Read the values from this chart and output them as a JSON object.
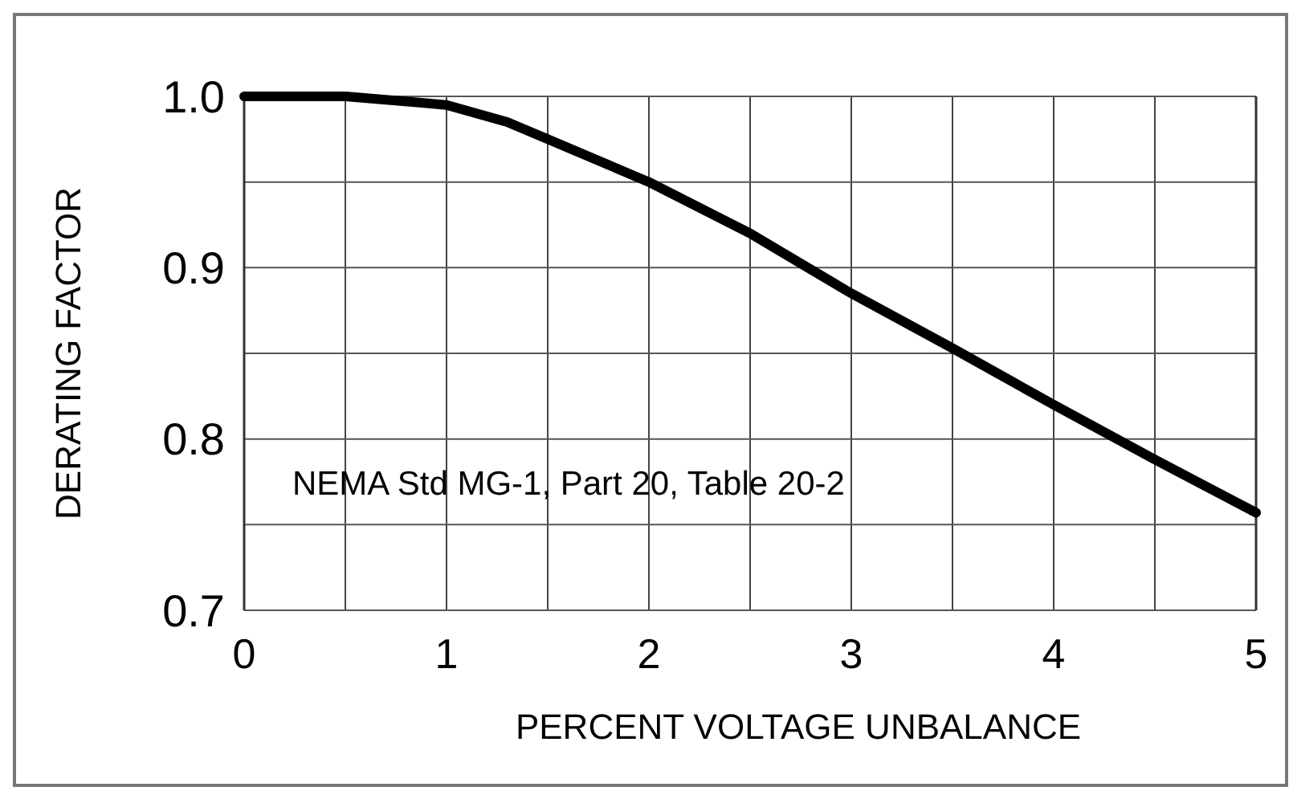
{
  "chart_data": {
    "type": "line",
    "xlabel": "PERCENT VOLTAGE UNBALANCE",
    "ylabel": "DERATING FACTOR",
    "x": [
      0,
      0.5,
      1,
      1.3,
      1.5,
      2,
      2.5,
      3,
      3.5,
      4,
      4.5,
      5
    ],
    "series": [
      {
        "color": "#000000",
        "values": [
          1.0,
          1.0,
          0.995,
          0.985,
          0.975,
          0.95,
          0.92,
          0.885,
          0.853,
          0.82,
          0.788,
          0.757
        ]
      }
    ],
    "xlim": [
      0,
      5
    ],
    "ylim": [
      0.7,
      1.0
    ],
    "xticks": [
      0,
      {
        "value": 0.5,
        "label": null
      },
      1,
      {
        "value": 1.5,
        "label": null
      },
      2,
      {
        "value": 2.5,
        "label": null
      },
      3,
      {
        "value": 3.5,
        "label": null
      },
      4,
      {
        "value": 4.5,
        "label": null
      },
      5
    ],
    "yticks": [
      {
        "value": 0.7,
        "label": "0.7"
      },
      {
        "value": 0.75,
        "label": null
      },
      {
        "value": 0.8,
        "label": "0.8"
      },
      {
        "value": 0.85,
        "label": null
      },
      {
        "value": 0.9,
        "label": "0.9"
      },
      {
        "value": 0.95,
        "label": null
      },
      {
        "value": 1.0,
        "label": "1.0"
      }
    ],
    "grid": true,
    "marker": "none",
    "line_style": "solid",
    "annotations": [
      "NEMA Std MG-1, Part 20, Table 20-2"
    ]
  }
}
